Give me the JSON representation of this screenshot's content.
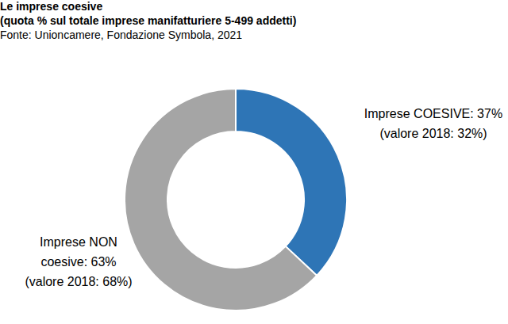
{
  "chart_data": {
    "type": "donut",
    "title": "Le imprese coesive",
    "subtitle": "(quota % sul totale imprese manifatturiere 5-499 addetti)",
    "source": "Fonte: Unioncamere, Fondazione Symbola, 2021",
    "values": [
      37,
      63
    ],
    "value_labels": [
      "Imprese COESIVE: 37%",
      "Imprese NON coesive: 63%"
    ],
    "values_2018": [
      32,
      68
    ],
    "labels_2018": [
      "(valore 2018: 32%)",
      "(valore 2018: 68%)"
    ],
    "colors": [
      "#2e75b6",
      "#a5a5a5"
    ],
    "data_labels": true
  }
}
